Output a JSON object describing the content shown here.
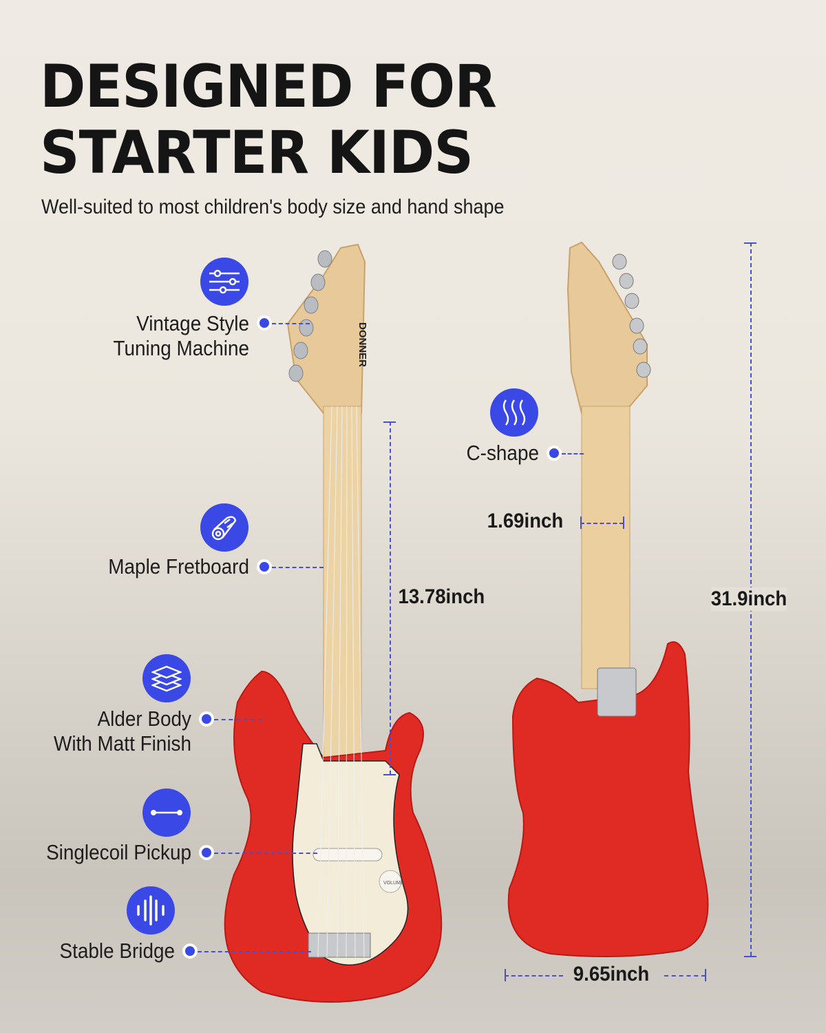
{
  "title_lines": [
    "DESIGNED FOR",
    "STARTER KIDS"
  ],
  "subtitle": "Well-suited to most children's body size and hand shape",
  "brand": "DONNER",
  "accent_color": "#3a49e6",
  "body_color": "#e02a24",
  "features": [
    {
      "label_lines": [
        "Vintage Style",
        "Tuning Machine"
      ],
      "icon": "sliders-icon"
    },
    {
      "label_lines": [
        "Maple Fretboard"
      ],
      "icon": "log-icon"
    },
    {
      "label_lines": [
        "Alder Body",
        "With Matt Finish"
      ],
      "icon": "layers-icon"
    },
    {
      "label_lines": [
        "Singlecoil Pickup"
      ],
      "icon": "line-segment-icon"
    },
    {
      "label_lines": [
        "Stable Bridge"
      ],
      "icon": "sound-wave-icon"
    },
    {
      "label_lines": [
        "C-shape"
      ],
      "icon": "waves-icon"
    }
  ],
  "dimensions": {
    "scale_length": "13.78inch",
    "neck_width": "1.69inch",
    "total_length": "31.9inch",
    "body_width": "9.65inch"
  },
  "knob_label": "VOLUME"
}
